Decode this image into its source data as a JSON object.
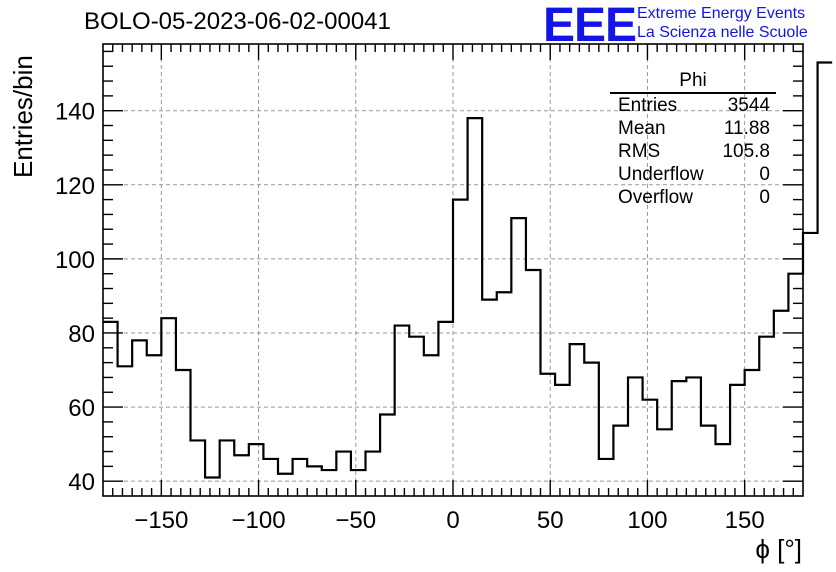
{
  "run_title": "BOLO-05-2023-06-02-00041",
  "logo": {
    "mark": "EEE",
    "line1": "Extreme Energy Events",
    "line2": "La Scienza nelle Scuole",
    "color": "#1414e6"
  },
  "stats_box": {
    "title": "Phi",
    "rows": [
      {
        "label": "Entries",
        "value": "3544"
      },
      {
        "label": "Mean",
        "value": "11.88"
      },
      {
        "label": "RMS",
        "value": "105.8"
      },
      {
        "label": "Underflow",
        "value": "0"
      },
      {
        "label": "Overflow",
        "value": "0"
      }
    ]
  },
  "chart_data": {
    "type": "bar",
    "histogram": true,
    "xlabel": "ϕ [°]",
    "ylabel": "Entries/bin",
    "xlim": [
      -180,
      180
    ],
    "ylim": [
      36,
      158
    ],
    "grid": true,
    "bin_width": 7.5,
    "x_ticks": [
      -150,
      -100,
      -50,
      0,
      50,
      100,
      150
    ],
    "y_ticks": [
      40,
      60,
      80,
      100,
      120,
      140
    ],
    "values": [
      83,
      71,
      78,
      74,
      84,
      70,
      51,
      41,
      51,
      47,
      50,
      46,
      42,
      46,
      44,
      43,
      48,
      43,
      48,
      58,
      82,
      79,
      74,
      83,
      116,
      138,
      89,
      91,
      111,
      97,
      69,
      66,
      77,
      72,
      46,
      55,
      68,
      62,
      54,
      67,
      68,
      55,
      50,
      66,
      70,
      79,
      86,
      96,
      107,
      153
    ]
  }
}
